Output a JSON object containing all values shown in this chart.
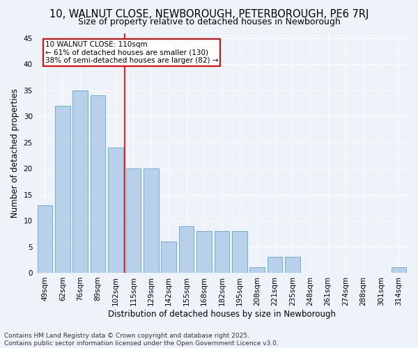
{
  "title": "10, WALNUT CLOSE, NEWBOROUGH, PETERBOROUGH, PE6 7RJ",
  "subtitle": "Size of property relative to detached houses in Newborough",
  "xlabel": "Distribution of detached houses by size in Newborough",
  "ylabel": "Number of detached properties",
  "categories": [
    "49sqm",
    "62sqm",
    "76sqm",
    "89sqm",
    "102sqm",
    "115sqm",
    "129sqm",
    "142sqm",
    "155sqm",
    "168sqm",
    "182sqm",
    "195sqm",
    "208sqm",
    "221sqm",
    "235sqm",
    "248sqm",
    "261sqm",
    "274sqm",
    "288sqm",
    "301sqm",
    "314sqm"
  ],
  "values": [
    13,
    32,
    35,
    34,
    24,
    20,
    20,
    6,
    9,
    8,
    8,
    8,
    1,
    3,
    3,
    0,
    0,
    0,
    0,
    0,
    1
  ],
  "bar_color": "#b8d0ea",
  "bar_edge_color": "#6baed6",
  "vline_x": 4.5,
  "vline_color": "red",
  "annotation_text": "10 WALNUT CLOSE: 110sqm\n← 61% of detached houses are smaller (130)\n38% of semi-detached houses are larger (82) →",
  "annotation_box_facecolor": "white",
  "annotation_box_edgecolor": "red",
  "ylim": [
    0,
    46
  ],
  "yticks": [
    0,
    5,
    10,
    15,
    20,
    25,
    30,
    35,
    40,
    45
  ],
  "bg_color": "#eef2f9",
  "grid_color": "#ffffff",
  "footer": "Contains HM Land Registry data © Crown copyright and database right 2025.\nContains public sector information licensed under the Open Government Licence v3.0.",
  "title_fontsize": 10.5,
  "subtitle_fontsize": 9,
  "xlabel_fontsize": 8.5,
  "ylabel_fontsize": 8.5,
  "tick_fontsize": 7.5,
  "annotation_fontsize": 7.5,
  "footer_fontsize": 6.5
}
